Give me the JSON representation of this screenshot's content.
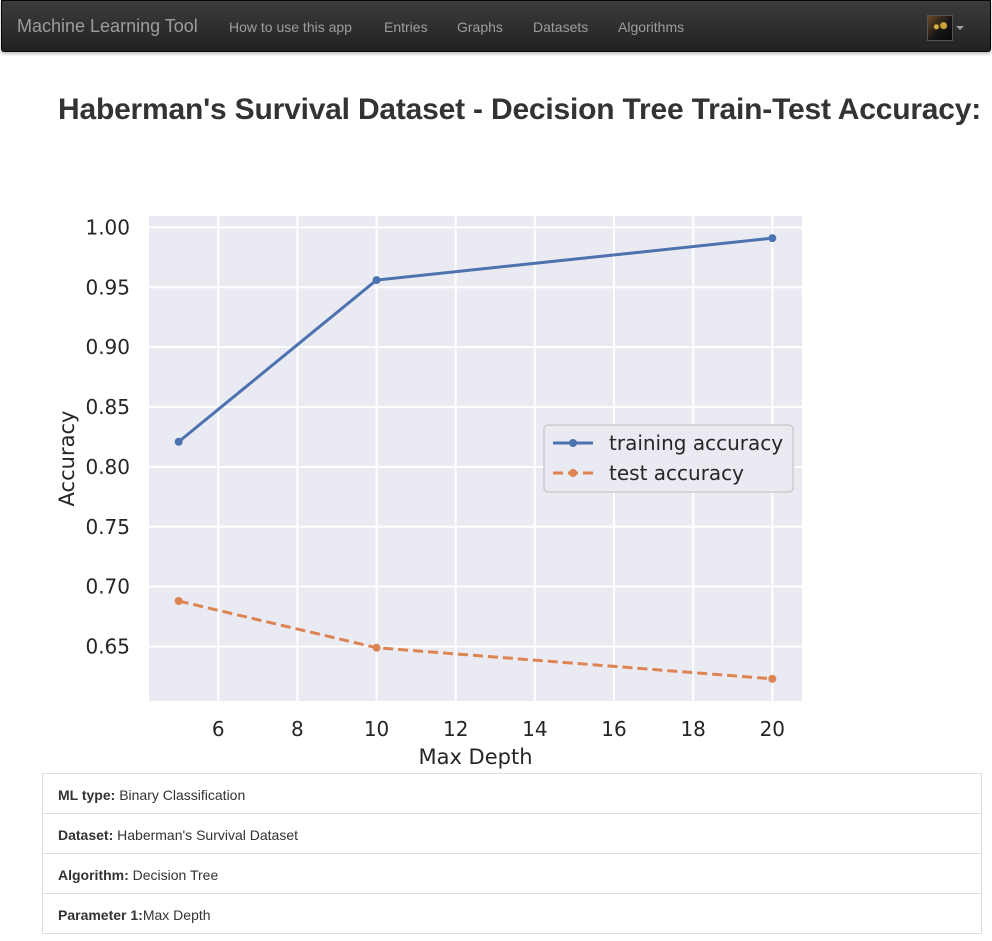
{
  "navbar": {
    "brand": "Machine Learning Tool",
    "items": [
      "How to use this app",
      "Entries",
      "Graphs",
      "Datasets",
      "Algorithms"
    ]
  },
  "page": {
    "title": "Haberman's Survival Dataset - Decision Tree Train-Test Accuracy:"
  },
  "chart_data": {
    "type": "line",
    "x": [
      5,
      10,
      20
    ],
    "series": [
      {
        "name": "training accuracy",
        "values": [
          0.821,
          0.956,
          0.991
        ],
        "color": "#4c72b0",
        "style": "solid"
      },
      {
        "name": "test accuracy",
        "values": [
          0.688,
          0.649,
          0.623
        ],
        "color": "#dd8452",
        "style": "dashed"
      }
    ],
    "xlabel": "Max Depth",
    "ylabel": "Accuracy",
    "xlim": [
      4.25,
      20.75
    ],
    "ylim": [
      0.6045,
      1.0095
    ],
    "xticks": [
      "6",
      "8",
      "10",
      "12",
      "14",
      "16",
      "18",
      "20"
    ],
    "yticks": [
      "0.65",
      "0.70",
      "0.75",
      "0.80",
      "0.85",
      "0.90",
      "0.95",
      "1.00"
    ],
    "legend_position": "center-right",
    "grid": true,
    "background": "#eaeaf2"
  },
  "info": [
    {
      "label": "ML type:",
      "value": " Binary Classification"
    },
    {
      "label": "Dataset:",
      "value": " Haberman's Survival Dataset"
    },
    {
      "label": "Algorithm:",
      "value": " Decision Tree"
    },
    {
      "label": "Parameter 1:",
      "value": "Max Depth"
    }
  ]
}
